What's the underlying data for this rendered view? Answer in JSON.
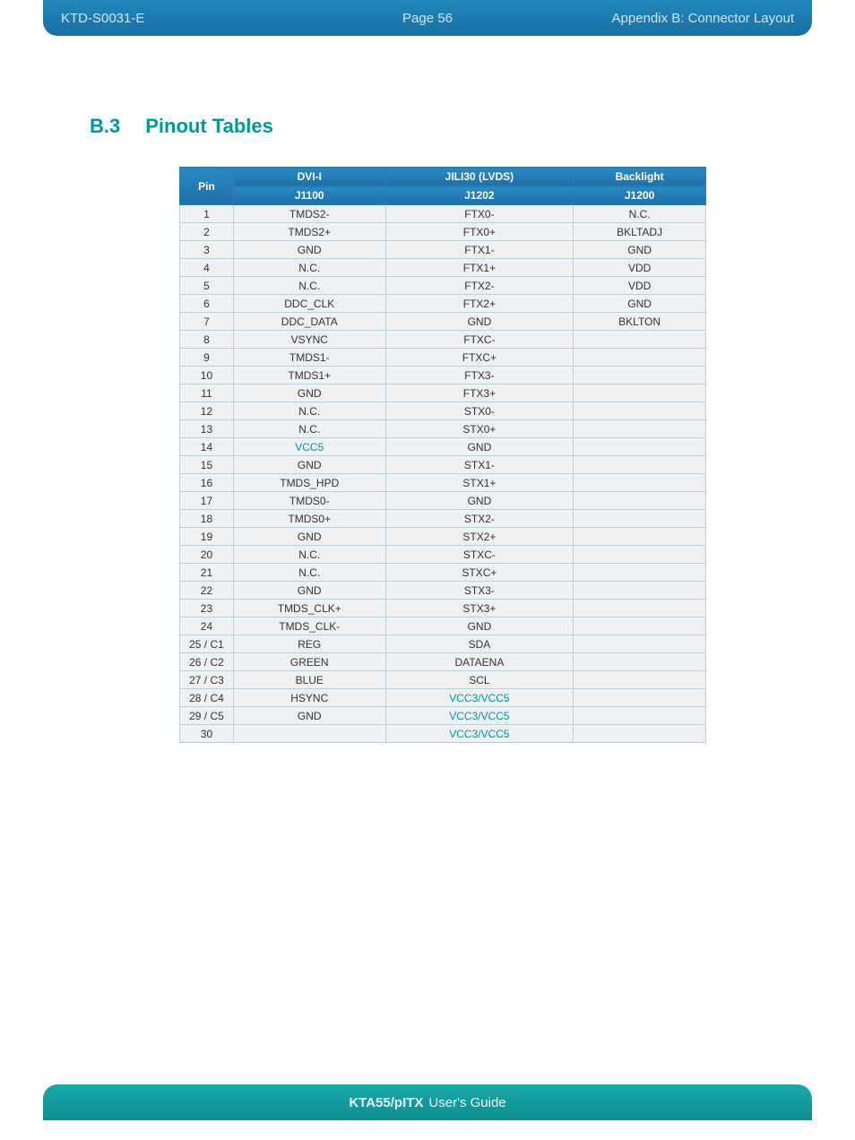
{
  "header": {
    "left": "KTD-S0031-E",
    "center": "Page 56",
    "right": "Appendix B: Connector Layout"
  },
  "section": {
    "num": "B.3",
    "title": "Pinout Tables"
  },
  "footer": {
    "bold": "KTA55/pITX",
    "rest": "User's Guide"
  },
  "table": {
    "headers": {
      "pin": "Pin",
      "c1_l1": "DVI-I",
      "c1_l2": "J1100",
      "c2_l1": "JILI30 (LVDS)",
      "c2_l2": "J1202",
      "c3_l1": "Backlight",
      "c3_l2": "J1200"
    },
    "rows": [
      {
        "pin": "1",
        "c1": "TMDS2-",
        "c2": "FTX0-",
        "c3": "N.C."
      },
      {
        "pin": "2",
        "c1": "TMDS2+",
        "c2": "FTX0+",
        "c3": "BKLTADJ"
      },
      {
        "pin": "3",
        "c1": "GND",
        "c2": "FTX1-",
        "c3": "GND"
      },
      {
        "pin": "4",
        "c1": "N.C.",
        "c2": "FTX1+",
        "c3": "VDD"
      },
      {
        "pin": "5",
        "c1": "N.C.",
        "c2": "FTX2-",
        "c3": "VDD"
      },
      {
        "pin": "6",
        "c1": "DDC_CLK",
        "c2": "FTX2+",
        "c3": "GND"
      },
      {
        "pin": "7",
        "c1": "DDC_DATA",
        "c2": "GND",
        "c3": "BKLTON"
      },
      {
        "pin": "8",
        "c1": "VSYNC",
        "c2": "FTXC-",
        "c3": ""
      },
      {
        "pin": "9",
        "c1": "TMDS1-",
        "c2": "FTXC+",
        "c3": ""
      },
      {
        "pin": "10",
        "c1": "TMDS1+",
        "c2": "FTX3-",
        "c3": ""
      },
      {
        "pin": "11",
        "c1": "GND",
        "c2": "FTX3+",
        "c3": ""
      },
      {
        "pin": "12",
        "c1": "N.C.",
        "c2": "STX0-",
        "c3": ""
      },
      {
        "pin": "13",
        "c1": "N.C.",
        "c2": "STX0+",
        "c3": ""
      },
      {
        "pin": "14",
        "c1": "VCC5",
        "c2": "GND",
        "c3": "",
        "c1_vcc": true
      },
      {
        "pin": "15",
        "c1": "GND",
        "c2": "STX1-",
        "c3": ""
      },
      {
        "pin": "16",
        "c1": "TMDS_HPD",
        "c2": "STX1+",
        "c3": ""
      },
      {
        "pin": "17",
        "c1": "TMDS0-",
        "c2": "GND",
        "c3": ""
      },
      {
        "pin": "18",
        "c1": "TMDS0+",
        "c2": "STX2-",
        "c3": ""
      },
      {
        "pin": "19",
        "c1": "GND",
        "c2": "STX2+",
        "c3": ""
      },
      {
        "pin": "20",
        "c1": "N.C.",
        "c2": "STXC-",
        "c3": ""
      },
      {
        "pin": "21",
        "c1": "N.C.",
        "c2": "STXC+",
        "c3": ""
      },
      {
        "pin": "22",
        "c1": "GND",
        "c2": "STX3-",
        "c3": ""
      },
      {
        "pin": "23",
        "c1": "TMDS_CLK+",
        "c2": "STX3+",
        "c3": ""
      },
      {
        "pin": "24",
        "c1": "TMDS_CLK-",
        "c2": "GND",
        "c3": ""
      },
      {
        "pin": "25 / C1",
        "c1": "REG",
        "c2": "SDA",
        "c3": ""
      },
      {
        "pin": "26 / C2",
        "c1": "GREEN",
        "c2": "DATAENA",
        "c3": ""
      },
      {
        "pin": "27 / C3",
        "c1": "BLUE",
        "c2": "SCL",
        "c3": ""
      },
      {
        "pin": "28 / C4",
        "c1": "HSYNC",
        "c2": "VCC3/VCC5",
        "c3": "",
        "c2_vcc": true
      },
      {
        "pin": "29 / C5",
        "c1": "GND",
        "c2": "VCC3/VCC5",
        "c3": "",
        "c2_vcc": true
      },
      {
        "pin": "30",
        "c1": "",
        "c2": "VCC3/VCC5",
        "c3": "",
        "c2_vcc": true
      }
    ]
  }
}
